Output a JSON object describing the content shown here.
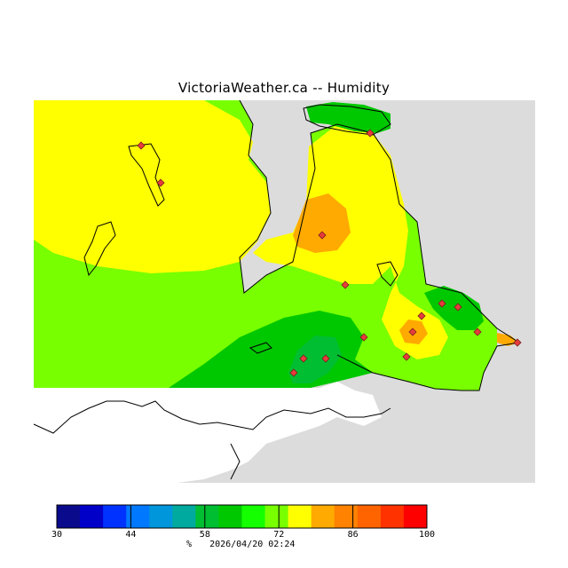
{
  "title": "VictoriaWeather.ca -- Humidity",
  "colors": {
    "sea": "#dcdcdc",
    "no_data": "#ffffff",
    "coast": "#000000",
    "station": "#e83c3c"
  },
  "scale": {
    "unit": "%",
    "min": 30,
    "max": 100,
    "step": 5,
    "tick_labels": [
      "30",
      "44",
      "58",
      "72",
      "86",
      "100"
    ],
    "bins": [
      "#0a0a8c",
      "#0000c8",
      "#0032ff",
      "#0078ff",
      "#0096dc",
      "#00aa9e",
      "#00be32",
      "#00c800",
      "#14ff00",
      "#78ff00",
      "#ffff00",
      "#ffaa00",
      "#ff8200",
      "#ff6400",
      "#ff3200",
      "#ff0000"
    ]
  },
  "timestamp": "2026/04/20 02:24",
  "zones": [
    {
      "name": "zone-orange-northwest",
      "value": 80
    },
    {
      "name": "zone-yellow-central",
      "value": 76
    },
    {
      "name": "zone-green-south",
      "value": 66
    },
    {
      "name": "zone-darkgreen-south",
      "value": 62
    },
    {
      "name": "zone-orange-east",
      "value": 82
    },
    {
      "name": "zone-darkorange-maxima",
      "value": 86
    }
  ]
}
